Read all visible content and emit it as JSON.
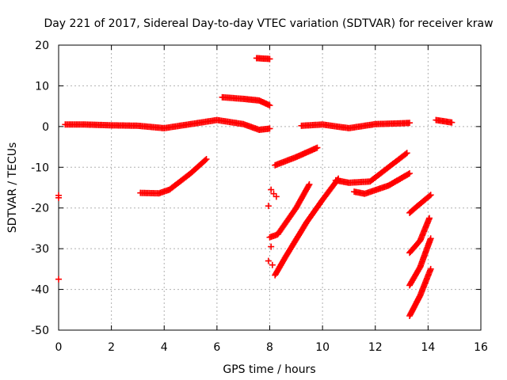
{
  "chart_data": {
    "type": "scatter",
    "title": "Day 221 of 2017, Sidereal Day-to-day VTEC variation (SDTVAR) for receiver kraw",
    "xlabel": "GPS time / hours",
    "ylabel": "SDTVAR / TECUs",
    "xlim": [
      0,
      16
    ],
    "ylim": [
      -50,
      20
    ],
    "xticks": [
      0,
      2,
      4,
      6,
      8,
      10,
      12,
      14,
      16
    ],
    "yticks": [
      20,
      10,
      0,
      -10,
      -20,
      -30,
      -40,
      -50
    ],
    "grid": true,
    "marker": "plus",
    "colors": {
      "series": "#ff0000",
      "grid": "#b0b0b0",
      "axis": "#000000"
    },
    "series": [
      {
        "segments": [
          [
            [
              0.25,
              0.5
            ],
            [
              1.0,
              0.5
            ],
            [
              2.0,
              0.3
            ],
            [
              3.0,
              0.2
            ],
            [
              4.0,
              -0.4
            ],
            [
              5.0,
              0.6
            ],
            [
              6.0,
              1.6
            ],
            [
              7.0,
              0.6
            ],
            [
              7.6,
              -0.8
            ],
            [
              8.0,
              -0.5
            ]
          ],
          [
            [
              9.2,
              0.2
            ],
            [
              10.0,
              0.5
            ],
            [
              11.0,
              -0.4
            ],
            [
              12.0,
              0.6
            ],
            [
              13.0,
              0.8
            ],
            [
              13.3,
              0.9
            ]
          ],
          [
            [
              14.3,
              1.6
            ],
            [
              14.9,
              1.0
            ]
          ],
          [
            [
              6.2,
              7.2
            ],
            [
              7.0,
              6.8
            ],
            [
              7.6,
              6.4
            ],
            [
              8.0,
              5.2
            ]
          ],
          [
            [
              7.5,
              16.8
            ],
            [
              8.0,
              16.6
            ]
          ],
          [
            [
              3.1,
              -16.3
            ],
            [
              3.8,
              -16.4
            ],
            [
              4.2,
              -15.5
            ],
            [
              5.0,
              -11.5
            ],
            [
              5.6,
              -8.0
            ]
          ],
          [
            [
              8.2,
              -9.5
            ],
            [
              9.0,
              -7.5
            ],
            [
              9.8,
              -5.2
            ]
          ],
          [
            [
              8.0,
              -27.2
            ],
            [
              8.3,
              -26.5
            ],
            [
              9.0,
              -20.0
            ],
            [
              9.5,
              -14.2
            ]
          ],
          [
            [
              8.2,
              -36.5
            ],
            [
              8.6,
              -32.0
            ],
            [
              9.4,
              -23.5
            ],
            [
              10.0,
              -18.0
            ],
            [
              10.6,
              -12.8
            ]
          ],
          [
            [
              10.5,
              -13.2
            ],
            [
              11.0,
              -13.8
            ],
            [
              11.8,
              -13.5
            ],
            [
              12.5,
              -10.0
            ],
            [
              13.2,
              -6.5
            ]
          ],
          [
            [
              11.2,
              -16.0
            ],
            [
              11.6,
              -16.5
            ],
            [
              12.5,
              -14.5
            ],
            [
              13.3,
              -11.5
            ]
          ],
          [
            [
              13.3,
              -21.2
            ],
            [
              13.6,
              -19.5
            ],
            [
              14.1,
              -16.8
            ]
          ],
          [
            [
              13.3,
              -31.0
            ],
            [
              13.7,
              -28.0
            ],
            [
              14.05,
              -22.5
            ]
          ],
          [
            [
              13.3,
              -39.0
            ],
            [
              13.7,
              -34.5
            ],
            [
              14.1,
              -27.5
            ]
          ],
          [
            [
              13.3,
              -46.5
            ],
            [
              13.7,
              -41.5
            ],
            [
              14.1,
              -35.0
            ]
          ]
        ],
        "points": [
          [
            0.0,
            -16.9
          ],
          [
            0.0,
            -17.5
          ],
          [
            0.0,
            -37.5
          ],
          [
            7.95,
            -19.5
          ],
          [
            8.05,
            -15.5
          ],
          [
            8.15,
            -16.5
          ],
          [
            8.25,
            -17.2
          ],
          [
            8.05,
            -29.5
          ],
          [
            7.95,
            -33.0
          ],
          [
            8.1,
            -34.0
          ]
        ]
      }
    ]
  }
}
